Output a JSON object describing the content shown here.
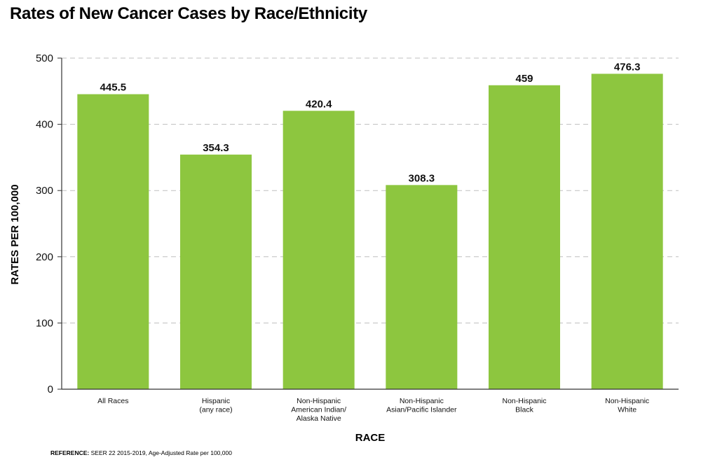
{
  "chart_data": {
    "type": "bar",
    "title": "Rates of New Cancer Cases by Race/Ethnicity",
    "xlabel": "RACE",
    "ylabel": "RATES PER 100,000",
    "categories": [
      [
        "All Races"
      ],
      [
        "Hispanic",
        "(any race)"
      ],
      [
        "Non-Hispanic",
        "American Indian/",
        "Alaska Native"
      ],
      [
        "Non-Hispanic",
        "Asian/Pacific Islander"
      ],
      [
        "Non-Hispanic",
        "Black"
      ],
      [
        "Non-Hispanic",
        "White"
      ]
    ],
    "values": [
      445.5,
      354.3,
      420.4,
      308.3,
      459,
      476.3
    ],
    "value_labels": [
      "445.5",
      "354.3",
      "420.4",
      "308.3",
      "459",
      "476.3"
    ],
    "ylim": [
      0,
      500
    ],
    "yticks": [
      0,
      100,
      200,
      300,
      400,
      500
    ],
    "grid": true,
    "bar_color": "#8dc63f",
    "grid_color": "#bfbfbf",
    "axis_color": "#333333"
  },
  "reference": {
    "label": "REFERENCE:",
    "text": " SEER 22 2015-2019, Age-Adjusted Rate per 100,000"
  }
}
